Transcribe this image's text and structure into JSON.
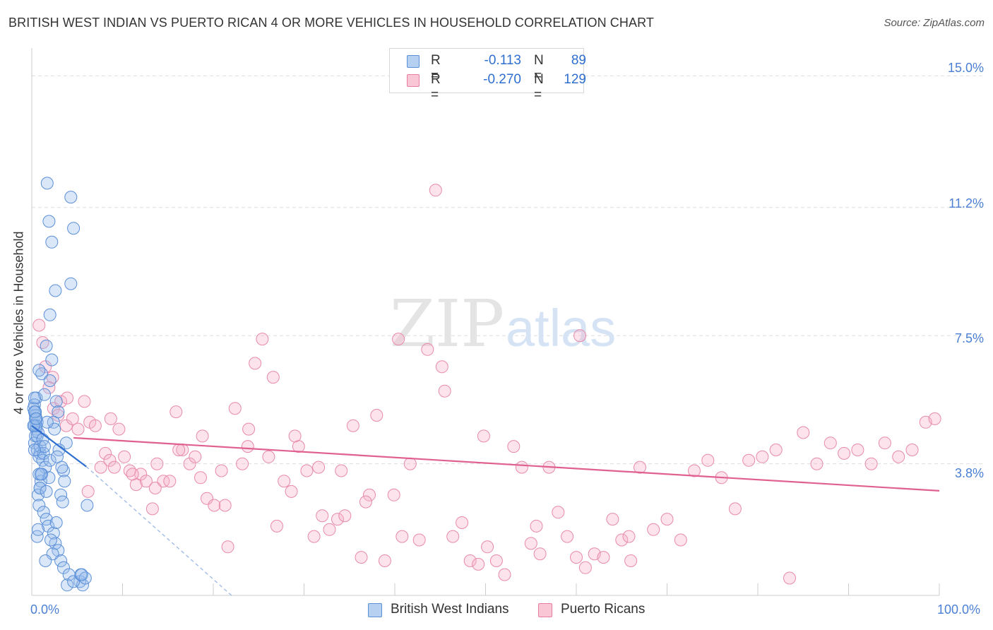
{
  "title": "BRITISH WEST INDIAN VS PUERTO RICAN 4 OR MORE VEHICLES IN HOUSEHOLD CORRELATION CHART",
  "source": "Source: ZipAtlas.com",
  "watermark": {
    "zip": "ZIP",
    "atlas": "atlas"
  },
  "legend": {
    "r_label": "R =",
    "n_label": "N =",
    "series": [
      {
        "name": "British West Indians",
        "r": "-0.113",
        "n": "89",
        "fill": "#a8c8f0",
        "stroke": "#5b8fd8"
      },
      {
        "name": "Puerto Ricans",
        "r": "-0.270",
        "n": "129",
        "fill": "#f8bcd0",
        "stroke": "#e87fa0"
      }
    ]
  },
  "colors": {
    "blue_point_fill": "rgba(150,185,235,0.35)",
    "blue_point_stroke": "#5b8fd8",
    "pink_point_fill": "rgba(245,175,200,0.35)",
    "pink_point_stroke": "#e88aaa",
    "blue_line": "#2f6fd0",
    "pink_line": "#e06090",
    "axis_text": "#4a7fd4",
    "grid": "#dddddd"
  },
  "chart_data": {
    "type": "scatter",
    "title": "BRITISH WEST INDIAN VS PUERTO RICAN 4 OR MORE VEHICLES IN HOUSEHOLD CORRELATION CHART",
    "xlabel": "",
    "ylabel": "4 or more Vehicles in Household",
    "xlim": [
      0,
      100
    ],
    "ylim": [
      0,
      15.6
    ],
    "x_tick_labels": [
      "0.0%",
      "100.0%"
    ],
    "y_ticks": [
      3.8,
      7.5,
      11.2,
      15.0
    ],
    "y_tick_labels": [
      "3.8%",
      "7.5%",
      "11.2%",
      "15.0%"
    ],
    "grid": true,
    "legend_position": "top-center",
    "series": [
      {
        "name": "British West Indians",
        "r": -0.113,
        "n": 89,
        "trend": {
          "x": [
            0.0,
            6.0
          ],
          "y": [
            4.9,
            3.72
          ]
        },
        "trend_extension": {
          "x": [
            6.0,
            22.0
          ],
          "y": [
            3.72,
            0.0
          ]
        },
        "x": [
          1.7,
          1.9,
          2.2,
          2.6,
          2.0,
          0.5,
          0.3,
          0.2,
          0.4,
          0.6,
          0.3,
          0.5,
          0.7,
          0.4,
          0.3,
          0.6,
          0.9,
          0.8,
          1.2,
          1.5,
          1.1,
          1.0,
          0.9,
          0.7,
          0.8,
          1.3,
          1.6,
          1.8,
          2.4,
          2.6,
          2.9,
          3.2,
          3.5,
          4.1,
          5.3,
          5.6,
          3.9,
          4.6,
          5.4,
          5.9,
          6.1,
          3.5,
          3.8,
          4.3,
          0.4,
          0.6,
          0.5,
          0.9,
          1.1,
          0.8,
          1.6,
          1.4,
          2.2,
          2.0,
          2.7,
          2.9,
          2.4,
          2.5,
          3.0,
          1.7,
          0.3,
          0.4,
          0.2,
          0.3,
          0.5,
          1.2,
          1.3,
          0.8,
          1.9,
          2.0,
          3.3,
          3.6,
          3.2,
          3.4,
          5.5,
          2.7,
          2.1,
          2.3,
          1.5,
          0.6,
          0.7,
          0.9,
          1.0,
          1.4,
          2.8,
          4.6,
          4.3,
          0.3,
          1.6
        ],
        "y": [
          11.9,
          10.8,
          10.2,
          8.8,
          8.1,
          5.7,
          5.5,
          5.4,
          5.2,
          5.0,
          4.9,
          4.8,
          4.7,
          4.6,
          4.4,
          4.2,
          4.1,
          4.0,
          3.9,
          3.7,
          3.5,
          3.3,
          3.1,
          2.9,
          2.6,
          2.4,
          2.2,
          2.0,
          1.8,
          1.5,
          1.3,
          1.0,
          0.8,
          0.6,
          0.4,
          0.3,
          0.3,
          0.4,
          0.6,
          0.5,
          2.6,
          3.6,
          4.4,
          11.5,
          5.1,
          4.6,
          4.9,
          4.3,
          6.4,
          6.5,
          7.2,
          5.8,
          6.8,
          6.2,
          5.6,
          5.3,
          5.0,
          4.8,
          4.2,
          5.0,
          5.7,
          5.3,
          4.9,
          5.3,
          5.1,
          4.5,
          4.1,
          3.5,
          3.4,
          3.9,
          3.7,
          3.3,
          2.9,
          2.7,
          0.6,
          2.1,
          1.6,
          1.2,
          1.0,
          1.7,
          1.9,
          3.1,
          3.5,
          4.3,
          4.0,
          10.6,
          9.0,
          4.2,
          3.0
        ]
      },
      {
        "name": "Puerto Ricans",
        "r": -0.27,
        "n": 129,
        "trend": {
          "x": [
            4.6,
            100.0
          ],
          "y": [
            4.55,
            3.02
          ]
        },
        "x": [
          0.8,
          1.2,
          1.5,
          1.9,
          2.4,
          2.9,
          3.2,
          3.8,
          4.5,
          5.1,
          5.8,
          6.4,
          7.0,
          7.6,
          8.1,
          8.6,
          9.1,
          9.6,
          10.2,
          10.8,
          11.5,
          12.0,
          12.6,
          13.3,
          13.8,
          14.5,
          15.2,
          15.9,
          16.6,
          17.4,
          18.0,
          18.6,
          19.3,
          20.1,
          20.9,
          21.6,
          22.4,
          23.2,
          23.9,
          24.6,
          25.4,
          26.1,
          27.0,
          27.8,
          28.6,
          29.4,
          30.3,
          31.1,
          32.0,
          32.8,
          33.7,
          34.5,
          35.4,
          36.3,
          37.2,
          38.0,
          38.9,
          39.9,
          40.8,
          41.7,
          42.7,
          43.6,
          44.5,
          45.5,
          46.4,
          47.4,
          48.3,
          49.2,
          50.2,
          51.2,
          52.1,
          53.1,
          54.0,
          55.0,
          56.0,
          57.0,
          58.0,
          59.0,
          60.0,
          61.0,
          62.0,
          63.0,
          64.0,
          65.0,
          66.0,
          67.0,
          68.5,
          70.0,
          71.5,
          73.0,
          74.5,
          76.0,
          77.5,
          79.0,
          80.5,
          82.0,
          83.5,
          85.0,
          86.5,
          88.0,
          89.5,
          91.0,
          92.5,
          94.0,
          95.5,
          97.0,
          98.5,
          99.5,
          2.3,
          3.9,
          6.2,
          8.7,
          11.1,
          13.6,
          16.2,
          18.8,
          21.3,
          23.8,
          26.6,
          29.0,
          31.6,
          34.1,
          36.8,
          40.4,
          45.2,
          49.8,
          55.6,
          60.4,
          65.8
        ],
        "y": [
          7.8,
          7.3,
          6.6,
          6.0,
          5.4,
          5.2,
          5.6,
          4.9,
          5.1,
          4.8,
          5.6,
          5.0,
          4.9,
          3.7,
          4.1,
          3.9,
          3.7,
          4.8,
          4.0,
          3.6,
          3.2,
          3.5,
          3.3,
          2.5,
          3.8,
          3.3,
          3.3,
          5.3,
          4.2,
          3.8,
          4.0,
          3.4,
          2.8,
          2.6,
          3.6,
          1.4,
          5.4,
          3.8,
          4.8,
          6.7,
          7.4,
          4.0,
          2.0,
          3.3,
          3.0,
          4.3,
          3.6,
          1.7,
          2.3,
          1.9,
          2.2,
          2.3,
          4.9,
          1.1,
          2.9,
          5.2,
          1.0,
          2.9,
          1.7,
          3.8,
          1.6,
          7.1,
          11.7,
          5.9,
          1.7,
          2.1,
          1.0,
          0.9,
          1.4,
          1.0,
          0.6,
          4.3,
          3.7,
          1.5,
          1.2,
          3.7,
          2.4,
          1.7,
          1.1,
          0.8,
          1.2,
          1.1,
          2.2,
          1.6,
          1.0,
          3.7,
          1.9,
          2.2,
          1.6,
          3.6,
          3.9,
          3.4,
          2.5,
          3.9,
          4.0,
          4.2,
          0.5,
          4.7,
          3.8,
          4.4,
          4.1,
          4.2,
          3.8,
          4.4,
          4.0,
          4.2,
          5.0,
          5.1,
          6.3,
          5.7,
          3.0,
          5.1,
          3.5,
          3.1,
          4.2,
          4.6,
          2.6,
          4.3,
          6.3,
          4.6,
          3.7,
          3.6,
          2.7,
          7.4,
          6.6,
          4.6,
          2.0,
          7.5,
          1.7
        ]
      }
    ]
  }
}
